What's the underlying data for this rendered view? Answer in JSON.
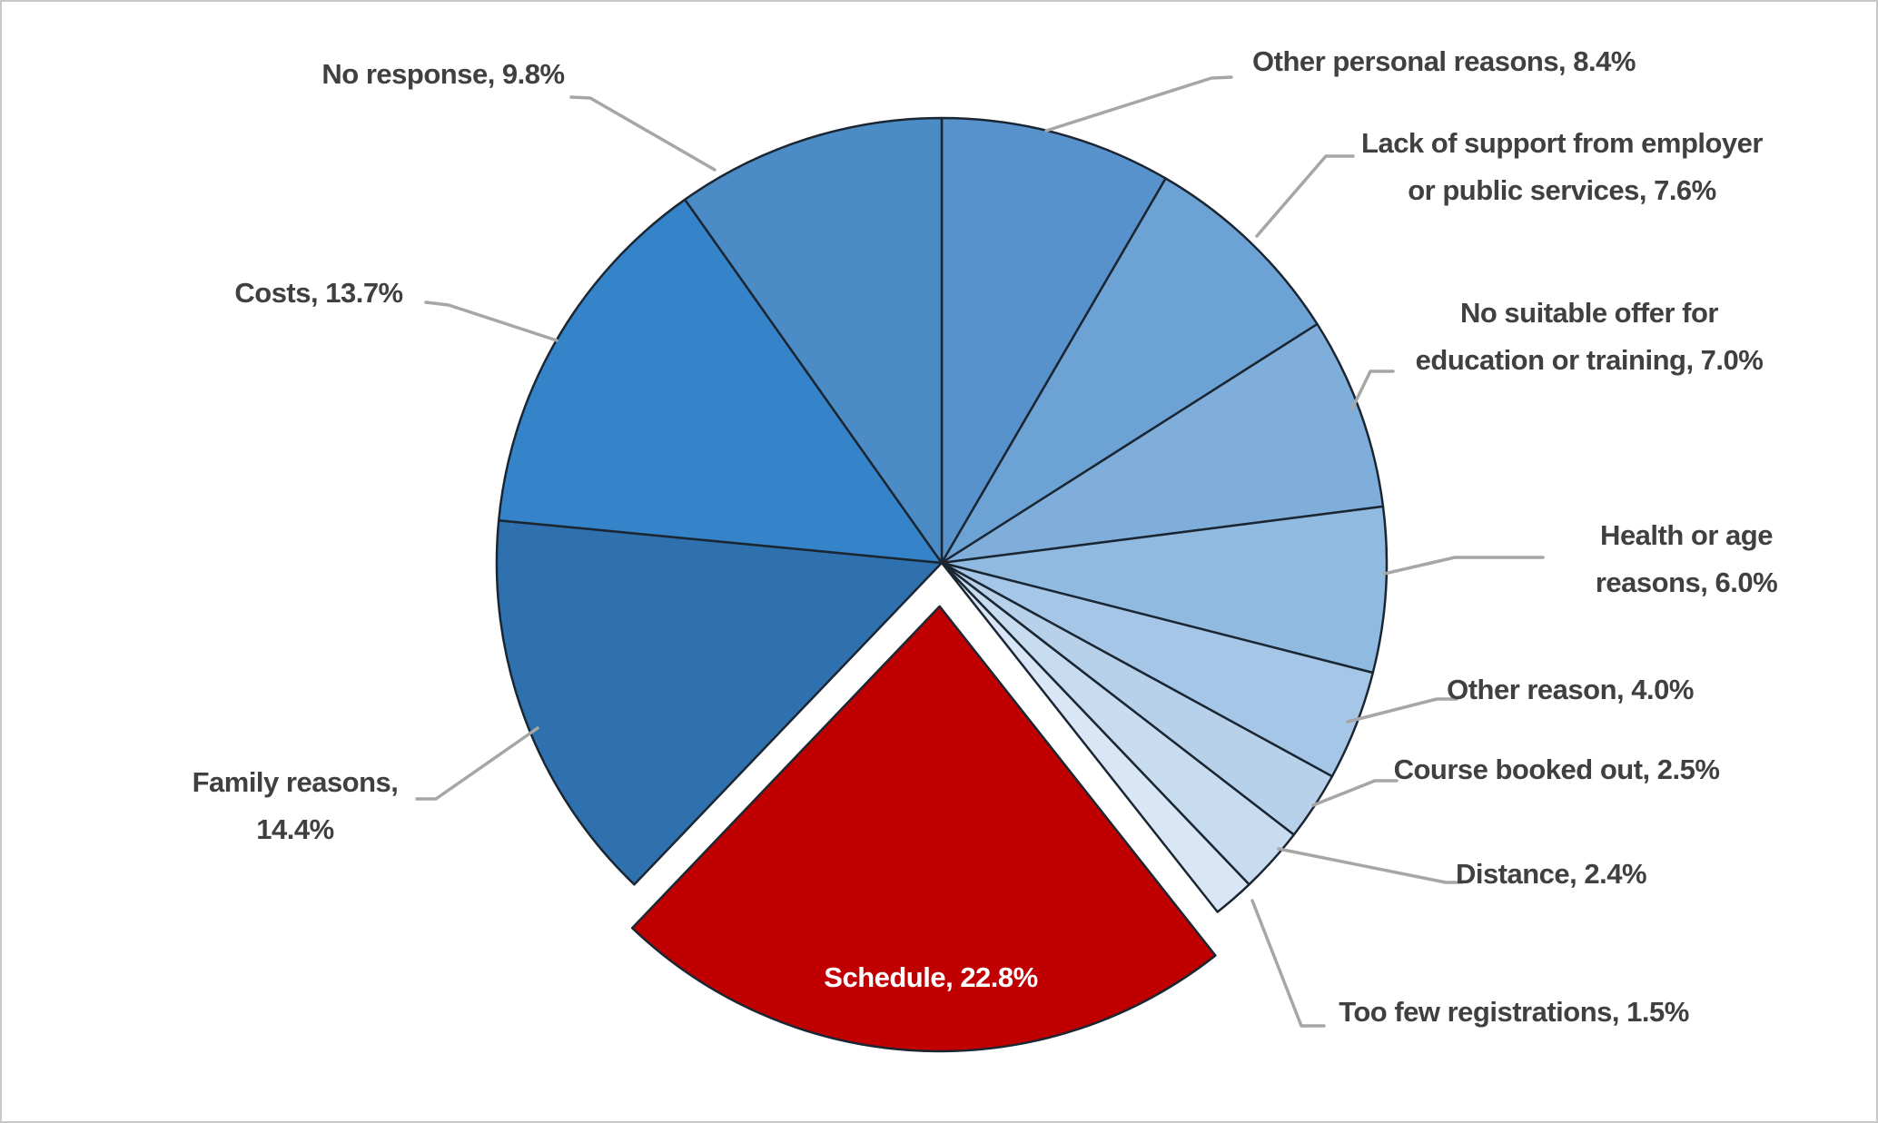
{
  "chart_data": {
    "type": "pie",
    "title": "",
    "legend": "none",
    "data_labels": "category name and percentage, outside slices with gray leader lines; Schedule label shown inside exploded slice",
    "start_angle_deg": 0,
    "direction": "clockwise",
    "total": 100.1,
    "slices": [
      {
        "id": "other-personal-reasons",
        "label": "Other personal reasons",
        "value": 8.4,
        "color": "#5892CC",
        "exploded": false,
        "label_inside": false,
        "label_lines": [
          "Other personal reasons, 8.4%"
        ]
      },
      {
        "id": "lack-of-support",
        "label": "Lack of support from employer or public services",
        "value": 7.6,
        "color": "#6CA2D4",
        "exploded": false,
        "label_inside": false,
        "label_lines": [
          "Lack of support from employer",
          "or public services, 7.6%"
        ]
      },
      {
        "id": "no-suitable-offer",
        "label": "No suitable offer for education or training",
        "value": 7.0,
        "color": "#7FAEDA",
        "exploded": false,
        "label_inside": false,
        "label_lines": [
          "No suitable offer for",
          "education or training, 7.0%"
        ]
      },
      {
        "id": "health-or-age-reasons",
        "label": "Health or age reasons",
        "value": 6.0,
        "color": "#90BAE0",
        "exploded": false,
        "label_inside": false,
        "label_lines": [
          "Health or age",
          "reasons, 6.0%"
        ]
      },
      {
        "id": "other-reason",
        "label": "Other reason",
        "value": 4.0,
        "color": "#A5C6E6",
        "exploded": false,
        "label_inside": false,
        "label_lines": [
          "Other reason, 4.0%"
        ]
      },
      {
        "id": "course-booked-out",
        "label": "Course booked out",
        "value": 2.5,
        "color": "#B7D1EB",
        "exploded": false,
        "label_inside": false,
        "label_lines": [
          "Course booked out, 2.5%"
        ]
      },
      {
        "id": "distance",
        "label": "Distance",
        "value": 2.4,
        "color": "#C8DCF0",
        "exploded": false,
        "label_inside": false,
        "label_lines": [
          "Distance, 2.4%"
        ]
      },
      {
        "id": "too-few-registrations",
        "label": "Too few registrations",
        "value": 1.5,
        "color": "#D9E6F5",
        "exploded": false,
        "label_inside": false,
        "label_lines": [
          "Too few registrations, 1.5%"
        ]
      },
      {
        "id": "schedule",
        "label": "Schedule",
        "value": 22.8,
        "color": "#C00000",
        "exploded": true,
        "label_inside": true,
        "label_lines": [
          "Schedule, 22.8%"
        ]
      },
      {
        "id": "family-reasons",
        "label": "Family reasons",
        "value": 14.4,
        "color": "#2E71AE",
        "exploded": false,
        "label_inside": false,
        "label_lines": [
          "Family reasons,",
          "14.4%"
        ]
      },
      {
        "id": "costs",
        "label": "Costs",
        "value": 13.7,
        "color": "#3583C8",
        "exploded": false,
        "label_inside": false,
        "label_lines": [
          "Costs, 13.7%"
        ]
      },
      {
        "id": "no-response",
        "label": "No response",
        "value": 9.8,
        "color": "#4B8BC6",
        "exploded": false,
        "label_inside": false,
        "label_lines": [
          "No response, 9.8%"
        ]
      }
    ]
  },
  "styles": {
    "background": "#FFFFFF",
    "frame_border_color": "#C8C8C8",
    "slice_border_color": "#1B2633",
    "leader_line_color": "#A6A6A6",
    "label_color": "#404040",
    "inside_label_color": "#FFFFFF",
    "accent_red": "#C00000"
  }
}
